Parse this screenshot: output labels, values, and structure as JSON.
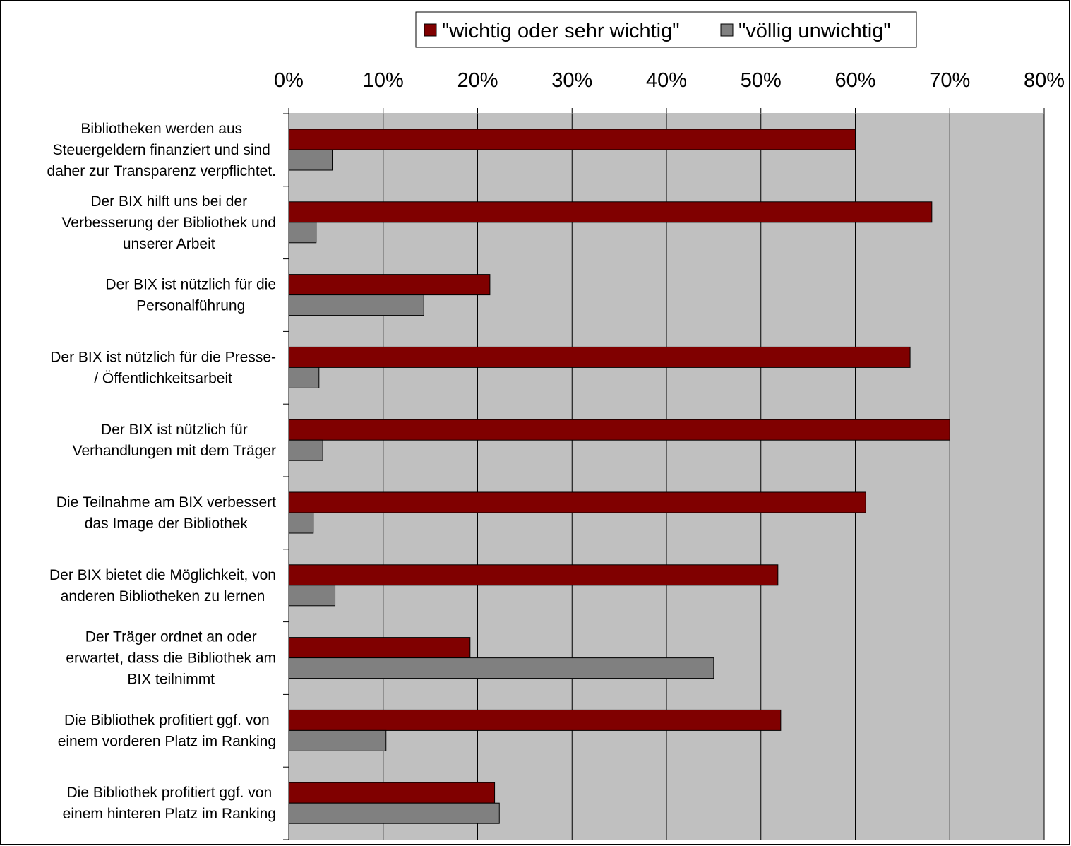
{
  "chart_data": {
    "type": "bar",
    "orientation": "horizontal",
    "title": "",
    "xlabel": "",
    "ylabel": "",
    "xlim": [
      0,
      80
    ],
    "x_ticks": [
      "0%",
      "10%",
      "20%",
      "30%",
      "40%",
      "50%",
      "60%",
      "70%",
      "80%"
    ],
    "x_axis_position": "top",
    "grid": true,
    "legend_position": "top-center",
    "categories": [
      "Bibliotheken werden aus Steuergeldern finanziert und sind daher zur Transparenz verpflichtet.",
      "Der BIX hilft uns bei der Verbesserung der Bibliothek und unserer Arbeit",
      "Der BIX ist nützlich für die Personalführung",
      "Der BIX ist nützlich für die Presse- / Öffentlichkeitsarbeit",
      "Der BIX ist nützlich für Verhandlungen mit dem Träger",
      "Die Teilnahme am BIX verbessert das Image der Bibliothek",
      "Der BIX bietet die Möglichkeit, von anderen Bibliotheken zu lernen",
      "Der Träger ordnet an oder erwartet, dass die Bibliothek am BIX teilnimmt",
      "Die Bibliothek profitiert ggf. von einem vorderen Platz im Ranking",
      "Die Bibliothek profitiert ggf. von einem hinteren Platz im Ranking"
    ],
    "category_label_lines": [
      [
        "Bibliotheken werden aus",
        "Steuergeldern finanziert und sind",
        "daher zur Transparenz verpflichtet."
      ],
      [
        "Der BIX hilft uns bei der",
        "Verbesserung der Bibliothek und",
        "unserer Arbeit"
      ],
      [
        "Der BIX ist nützlich für die",
        "Personalführung"
      ],
      [
        "Der BIX ist nützlich für die Presse-",
        "/ Öffentlichkeitsarbeit"
      ],
      [
        "Der BIX ist nützlich für",
        "Verhandlungen mit dem Träger"
      ],
      [
        "Die Teilnahme am BIX verbessert",
        "das Image der Bibliothek"
      ],
      [
        "Der BIX bietet die Möglichkeit, von",
        "anderen Bibliotheken zu lernen"
      ],
      [
        "Der Träger ordnet an oder",
        "erwartet, dass die Bibliothek am",
        "BIX teilnimmt"
      ],
      [
        "Die Bibliothek profitiert ggf. von",
        "einem vorderen Platz im Ranking"
      ],
      [
        "Die Bibliothek profitiert ggf. von",
        "einem hinteren Platz im Ranking"
      ]
    ],
    "series": [
      {
        "name": "\"wichtig oder sehr wichtig\"",
        "color": "#800000",
        "values": [
          60.0,
          68.1,
          21.3,
          65.8,
          70.0,
          61.1,
          51.8,
          19.2,
          52.1,
          21.8
        ]
      },
      {
        "name": "\"völlig unwichtig\"",
        "color": "#808080",
        "values": [
          4.6,
          2.9,
          14.3,
          3.2,
          3.6,
          2.6,
          4.9,
          45.0,
          10.3,
          22.3
        ]
      }
    ],
    "plot_background": "#c0c0c0",
    "gridline_color": "#000000"
  }
}
